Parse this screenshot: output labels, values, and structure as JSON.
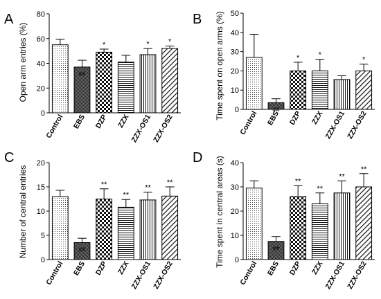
{
  "chart_data": [
    {
      "type": "bar",
      "panel_label": "A",
      "ylabel": "Open arm entries (%)",
      "categories": [
        "Control",
        "EBS",
        "DZP",
        "ZZX",
        "ZZX-OS1",
        "ZZX-OS2"
      ],
      "values": [
        55,
        37,
        49,
        41,
        47,
        52
      ],
      "errors": [
        4.5,
        5.5,
        2.5,
        5.5,
        5,
        2
      ],
      "significance": [
        "",
        "##",
        "*",
        "",
        "*",
        "*"
      ],
      "ylim": [
        0,
        80
      ],
      "yticks": [
        0,
        20,
        40,
        60,
        80
      ],
      "ytick_labels": [
        "0",
        "20",
        "40",
        "60",
        "80"
      ],
      "patterns": [
        "dots",
        "dense",
        "checker",
        "hstripes",
        "vstripes",
        "diag"
      ]
    },
    {
      "type": "bar",
      "panel_label": "B",
      "ylabel": "Time spent on open arms (%)",
      "categories": [
        "Control",
        "EBS",
        "DZP",
        "ZZX",
        "ZZX-OS1",
        "ZZX-OS2"
      ],
      "values": [
        27,
        3.5,
        20,
        20,
        15.5,
        20
      ],
      "errors": [
        12,
        2,
        4.5,
        6,
        2,
        3.5
      ],
      "significance": [
        "",
        "##",
        "*",
        "*",
        "",
        "*"
      ],
      "ylim": [
        0,
        50
      ],
      "yticks": [
        0,
        10,
        20,
        30,
        40,
        50
      ],
      "ytick_labels": [
        "0",
        "10",
        "20",
        "30",
        "40",
        "50"
      ],
      "patterns": [
        "dots",
        "dense",
        "checker",
        "hstripes",
        "vstripes",
        "diag"
      ]
    },
    {
      "type": "bar",
      "panel_label": "C",
      "ylabel": "Number of central entries",
      "categories": [
        "Control",
        "EBS",
        "DZP",
        "ZZX",
        "ZZX-OS1",
        "ZZX-OS2"
      ],
      "values": [
        13,
        3.5,
        12.5,
        10.8,
        12.3,
        13.1
      ],
      "errors": [
        1.3,
        0.9,
        2.1,
        1.6,
        1.6,
        1.9
      ],
      "significance": [
        "",
        "##",
        "**",
        "**",
        "**",
        "**"
      ],
      "ylim": [
        0,
        20
      ],
      "yticks": [
        0,
        5,
        10,
        15,
        20
      ],
      "ytick_labels": [
        "0",
        "5",
        "10",
        "15",
        "20"
      ],
      "patterns": [
        "dots",
        "dense",
        "checker",
        "hstripes",
        "vstripes",
        "diag"
      ]
    },
    {
      "type": "bar",
      "panel_label": "D",
      "ylabel": "Time spent in central areas (s)",
      "categories": [
        "Control",
        "EBS",
        "DZP",
        "ZZX",
        "ZZX-OS1",
        "ZZX-OS2"
      ],
      "values": [
        29.5,
        7.5,
        26,
        23,
        27.5,
        30
      ],
      "errors": [
        3,
        2,
        4.5,
        4.5,
        5,
        5.5
      ],
      "significance": [
        "",
        "##",
        "**",
        "**",
        "**",
        "**"
      ],
      "ylim": [
        0,
        40
      ],
      "yticks": [
        0,
        10,
        20,
        30,
        40
      ],
      "ytick_labels": [
        "0",
        "10",
        "20",
        "30",
        "40"
      ],
      "patterns": [
        "dots",
        "dense",
        "checker",
        "hstripes",
        "vstripes",
        "diag"
      ]
    }
  ]
}
